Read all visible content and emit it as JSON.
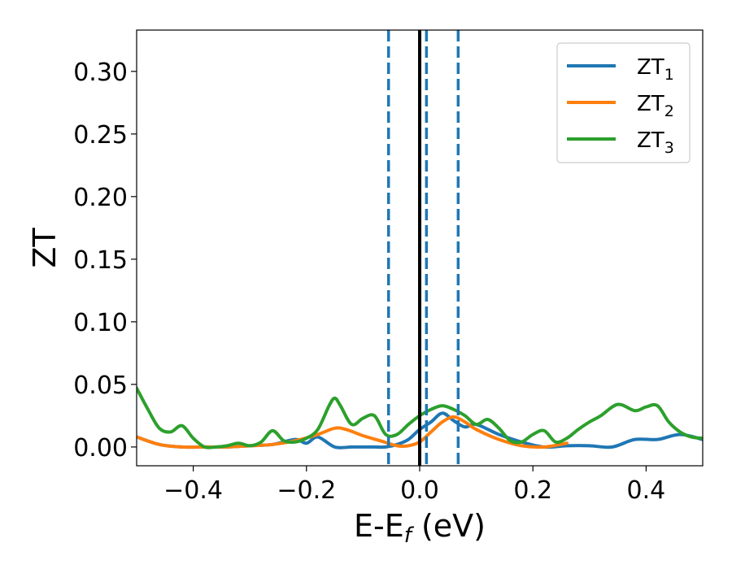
{
  "chart_data": {
    "type": "line",
    "xlabel": "E-E",
    "xlabel_sub": "f",
    "xlabel_unit": "(eV)",
    "ylabel": "ZT",
    "xlim": [
      -0.5,
      0.5
    ],
    "ylim": [
      -0.015,
      0.333
    ],
    "x_ticks": [
      -0.4,
      -0.2,
      0.0,
      0.2,
      0.4
    ],
    "x_tick_labels": [
      "−0.4",
      "−0.2",
      "0.0",
      "0.2",
      "0.4"
    ],
    "y_ticks": [
      0.0,
      0.05,
      0.1,
      0.15,
      0.2,
      0.25,
      0.3
    ],
    "y_tick_labels": [
      "0.00",
      "0.05",
      "0.10",
      "0.15",
      "0.20",
      "0.25",
      "0.30"
    ],
    "grid": false,
    "legend_position": "top-right",
    "vertical_lines": [
      {
        "x": 0.0,
        "style": "solid",
        "color": "#000000"
      },
      {
        "x": -0.055,
        "style": "dashed",
        "color": "#1f77b4"
      },
      {
        "x": 0.012,
        "style": "dashed",
        "color": "#1f77b4"
      },
      {
        "x": 0.068,
        "style": "dashed",
        "color": "#1f77b4"
      }
    ],
    "series": [
      {
        "name": "ZT",
        "name_sub": "1",
        "color": "#1f77b4",
        "x": [
          -0.5,
          -0.46,
          -0.42,
          -0.38,
          -0.34,
          -0.3,
          -0.26,
          -0.22,
          -0.2,
          -0.18,
          -0.15,
          -0.12,
          -0.1,
          -0.08,
          -0.06,
          -0.04,
          -0.02,
          0.0,
          0.02,
          0.04,
          0.06,
          0.08,
          0.1,
          0.14,
          0.18,
          0.22,
          0.26,
          0.3,
          0.34,
          0.38,
          0.42,
          0.46,
          0.5
        ],
        "y": [
          0.008,
          0.002,
          0.0,
          0.0,
          0.0,
          0.001,
          0.002,
          0.006,
          0.003,
          0.008,
          0.0,
          0.0,
          0.0,
          0.0,
          0.0,
          0.002,
          0.006,
          0.014,
          0.02,
          0.027,
          0.021,
          0.016,
          0.018,
          0.01,
          0.004,
          0.0,
          0.001,
          0.001,
          0.0,
          0.006,
          0.006,
          0.01,
          0.006
        ]
      },
      {
        "name": "ZT",
        "name_sub": "2",
        "color": "#ff7f0e",
        "x": [
          -0.5,
          -0.46,
          -0.42,
          -0.38,
          -0.34,
          -0.3,
          -0.26,
          -0.22,
          -0.18,
          -0.15,
          -0.13,
          -0.1,
          -0.07,
          -0.04,
          -0.02,
          0.0,
          0.02,
          0.04,
          0.06,
          0.08,
          0.1,
          0.14,
          0.18,
          0.22,
          0.26
        ],
        "y": [
          0.008,
          0.002,
          0.0,
          0.0,
          0.0,
          0.001,
          0.002,
          0.005,
          0.01,
          0.015,
          0.014,
          0.009,
          0.005,
          0.001,
          0.001,
          0.004,
          0.012,
          0.02,
          0.024,
          0.02,
          0.014,
          0.006,
          0.001,
          0.0,
          0.003
        ]
      },
      {
        "name": "ZT",
        "name_sub": "3",
        "color": "#2ca02c",
        "x": [
          -0.5,
          -0.48,
          -0.46,
          -0.44,
          -0.42,
          -0.4,
          -0.38,
          -0.36,
          -0.34,
          -0.32,
          -0.3,
          -0.28,
          -0.26,
          -0.24,
          -0.22,
          -0.2,
          -0.18,
          -0.16,
          -0.15,
          -0.14,
          -0.12,
          -0.1,
          -0.08,
          -0.06,
          -0.04,
          -0.02,
          0.0,
          0.02,
          0.04,
          0.06,
          0.08,
          0.1,
          0.12,
          0.14,
          0.16,
          0.18,
          0.2,
          0.22,
          0.24,
          0.26,
          0.28,
          0.3,
          0.32,
          0.35,
          0.38,
          0.4,
          0.42,
          0.44,
          0.46,
          0.48,
          0.5
        ],
        "y": [
          0.047,
          0.03,
          0.015,
          0.012,
          0.017,
          0.007,
          0.0,
          0.0,
          0.001,
          0.003,
          0.001,
          0.004,
          0.013,
          0.005,
          0.004,
          0.007,
          0.014,
          0.033,
          0.039,
          0.033,
          0.018,
          0.023,
          0.025,
          0.01,
          0.01,
          0.018,
          0.025,
          0.03,
          0.033,
          0.03,
          0.025,
          0.018,
          0.022,
          0.015,
          0.005,
          0.004,
          0.01,
          0.013,
          0.004,
          0.007,
          0.014,
          0.02,
          0.025,
          0.034,
          0.029,
          0.032,
          0.033,
          0.02,
          0.012,
          0.008,
          0.007
        ]
      }
    ]
  }
}
